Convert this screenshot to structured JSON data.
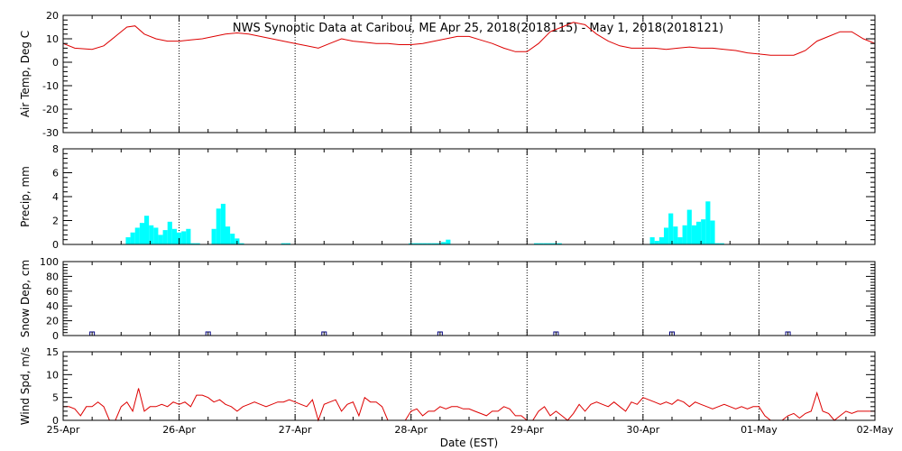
{
  "title": "NWS Synoptic Data at Caribou, ME   Apr 25, 2018(2018115) - May  1, 2018(2018121)",
  "xlabel": "Date (EST)",
  "x_ticks": [
    "25-Apr",
    "26-Apr",
    "27-Apr",
    "28-Apr",
    "29-Apr",
    "30-Apr",
    "01-May",
    "02-May"
  ],
  "colors": {
    "temp": "#dd0000",
    "precip": "#00ffff",
    "snow": "#000080",
    "wind": "#dd0000",
    "axis": "#000000"
  },
  "chart_data": [
    {
      "type": "line",
      "ylabel": "Air Temp, Deg C",
      "ylim": [
        -30,
        20
      ],
      "yticks": [
        -30,
        -20,
        -10,
        0,
        10,
        20
      ],
      "grid": "vertical dotted at day boundaries",
      "x_unit": "days since 25-Apr 00:00",
      "series": [
        {
          "x": [
            0,
            0.1,
            0.25,
            0.35,
            0.45,
            0.55,
            0.62,
            0.7,
            0.8,
            0.9,
            1.0,
            1.1,
            1.2,
            1.3,
            1.4,
            1.5,
            1.6,
            1.7,
            1.8,
            1.9,
            2.0,
            2.05,
            2.1,
            2.2,
            2.3,
            2.4,
            2.5,
            2.6,
            2.7,
            2.8,
            2.9,
            3.0,
            3.1,
            3.2,
            3.3,
            3.4,
            3.5,
            3.6,
            3.7,
            3.8,
            3.9,
            4.0,
            4.1,
            4.2,
            4.3,
            4.4,
            4.5,
            4.6,
            4.7,
            4.8,
            4.9,
            5.0,
            5.1,
            5.2,
            5.3,
            5.4,
            5.5,
            5.6,
            5.7,
            5.8,
            5.9,
            6.0,
            6.1,
            6.2,
            6.3,
            6.4,
            6.5,
            6.6,
            6.7,
            6.8,
            6.9,
            7.0
          ],
          "y": [
            8,
            6,
            5.5,
            7,
            11,
            15,
            15.5,
            12,
            10,
            9,
            9,
            9.5,
            10,
            11,
            12,
            12.5,
            12,
            11,
            10,
            9,
            8,
            7.5,
            7,
            6,
            8,
            10,
            9,
            8.5,
            8,
            8,
            7.5,
            7.5,
            8,
            9,
            10,
            11,
            11,
            9.5,
            8,
            6,
            4.5,
            4.5,
            8,
            13,
            15,
            17,
            16,
            12,
            9,
            7,
            6,
            6,
            6,
            5.5,
            6,
            6.5,
            6,
            6,
            5.5,
            5,
            4,
            3.5,
            3,
            3,
            3,
            5,
            9,
            11,
            13,
            13,
            10,
            8
          ]
        }
      ]
    },
    {
      "type": "bar",
      "ylabel": "Precip, mm",
      "ylim": [
        0,
        8
      ],
      "yticks": [
        0,
        2,
        4,
        6,
        8
      ],
      "bar_width": 0.04,
      "x_unit": "days since 25-Apr 00:00",
      "x": [
        0.54,
        0.58,
        0.62,
        0.66,
        0.7,
        0.74,
        0.78,
        0.82,
        0.86,
        0.9,
        0.94,
        0.98,
        1.02,
        1.06,
        1.1,
        1.14,
        1.28,
        1.32,
        1.36,
        1.4,
        1.44,
        1.48,
        1.52,
        1.88,
        1.92,
        2.98,
        3.02,
        3.06,
        3.1,
        3.14,
        3.18,
        3.22,
        3.26,
        3.3,
        4.06,
        4.1,
        4.14,
        4.18,
        4.22,
        4.26,
        5.06,
        5.1,
        5.14,
        5.18,
        5.22,
        5.26,
        5.3,
        5.34,
        5.38,
        5.42,
        5.46,
        5.5,
        5.54,
        5.58,
        5.62,
        5.66
      ],
      "values": [
        0.6,
        1.0,
        1.4,
        1.8,
        2.4,
        1.6,
        1.4,
        0.8,
        1.2,
        1.9,
        1.3,
        1.0,
        1.1,
        1.3,
        0.1,
        0.1,
        1.3,
        3.0,
        3.4,
        1.5,
        0.9,
        0.5,
        0.1,
        0.1,
        0.1,
        0.1,
        0.1,
        0.1,
        0.1,
        0.1,
        0.1,
        0.1,
        0.2,
        0.4,
        0.1,
        0.1,
        0.1,
        0.1,
        0.1,
        0.1,
        0.6,
        0.3,
        0.6,
        1.4,
        2.6,
        1.5,
        0.6,
        1.6,
        2.9,
        1.6,
        1.9,
        2.1,
        3.6,
        2.0,
        0.1,
        0.1
      ]
    },
    {
      "type": "scatter",
      "ylabel": "Snow Dep, cm",
      "ylim": [
        0,
        100
      ],
      "yticks": [
        0,
        20,
        40,
        60,
        80,
        100
      ],
      "marker": "open square",
      "x_unit": "days since 25-Apr 00:00",
      "x": [
        0.25,
        1.25,
        2.25,
        3.25,
        4.25,
        5.25,
        6.25
      ],
      "values": [
        0,
        0,
        0,
        0,
        0,
        0,
        0
      ]
    },
    {
      "type": "line",
      "ylabel": "Wind Spd, m/s",
      "ylim": [
        0,
        15
      ],
      "yticks": [
        0,
        5,
        10,
        15
      ],
      "x_unit": "days since 25-Apr 00:00",
      "series": [
        {
          "x": [
            0,
            0.05,
            0.1,
            0.15,
            0.2,
            0.25,
            0.3,
            0.35,
            0.4,
            0.45,
            0.5,
            0.55,
            0.6,
            0.65,
            0.7,
            0.75,
            0.8,
            0.85,
            0.9,
            0.95,
            1.0,
            1.05,
            1.1,
            1.15,
            1.2,
            1.25,
            1.3,
            1.35,
            1.4,
            1.45,
            1.5,
            1.55,
            1.6,
            1.65,
            1.7,
            1.75,
            1.8,
            1.85,
            1.9,
            1.95,
            2.0,
            2.05,
            2.1,
            2.15,
            2.2,
            2.25,
            2.3,
            2.35,
            2.4,
            2.45,
            2.5,
            2.55,
            2.6,
            2.65,
            2.7,
            2.75,
            2.8,
            2.85,
            2.9,
            2.95,
            3.0,
            3.05,
            3.1,
            3.15,
            3.2,
            3.25,
            3.3,
            3.35,
            3.4,
            3.45,
            3.5,
            3.55,
            3.6,
            3.65,
            3.7,
            3.75,
            3.8,
            3.85,
            3.9,
            3.95,
            4.0,
            4.05,
            4.1,
            4.15,
            4.2,
            4.25,
            4.3,
            4.35,
            4.4,
            4.45,
            4.5,
            4.55,
            4.6,
            4.65,
            4.7,
            4.75,
            4.8,
            4.85,
            4.9,
            4.95,
            5.0,
            5.05,
            5.1,
            5.15,
            5.2,
            5.25,
            5.3,
            5.35,
            5.4,
            5.45,
            5.5,
            5.55,
            5.6,
            5.65,
            5.7,
            5.75,
            5.8,
            5.85,
            5.9,
            5.95,
            6.0,
            6.05,
            6.1,
            6.15,
            6.2,
            6.25,
            6.3,
            6.35,
            6.4,
            6.45,
            6.5,
            6.55,
            6.6,
            6.65,
            6.7,
            6.75,
            6.8,
            6.85,
            6.9,
            6.95,
            7.0
          ],
          "y": [
            3,
            3,
            2.5,
            1,
            3,
            3,
            4,
            3,
            0,
            0,
            3,
            4,
            2,
            7,
            2,
            3,
            3,
            3.5,
            3,
            4,
            3.5,
            4,
            3,
            5.5,
            5.5,
            5,
            4,
            4.5,
            3.5,
            3,
            2,
            3,
            3.5,
            4,
            3.5,
            3,
            3.5,
            4,
            4,
            4.5,
            4,
            3.5,
            3,
            4.5,
            0,
            3.5,
            4,
            4.5,
            2,
            3.5,
            4,
            1,
            5,
            4,
            4,
            3,
            0,
            0,
            0,
            0,
            2,
            2.5,
            1,
            2,
            2,
            3,
            2.5,
            3,
            3,
            2.5,
            2.5,
            2,
            1.5,
            1,
            2,
            2,
            3,
            2.5,
            1,
            1,
            0,
            0,
            2,
            3,
            1,
            2,
            1,
            0,
            1.5,
            3.5,
            2,
            3.5,
            4,
            3.5,
            3,
            4,
            3,
            2,
            4,
            3.5,
            5,
            4.5,
            4,
            3.5,
            4,
            3.5,
            4.5,
            4,
            3,
            4,
            3.5,
            3,
            2.5,
            3,
            3.5,
            3,
            2.5,
            3,
            2.5,
            3,
            3,
            1,
            0,
            0,
            0,
            1,
            1.5,
            0.5,
            1.5,
            2,
            6,
            2,
            1.5,
            0,
            1,
            2,
            1.5,
            2,
            2,
            2,
            2
          ]
        }
      ]
    }
  ]
}
